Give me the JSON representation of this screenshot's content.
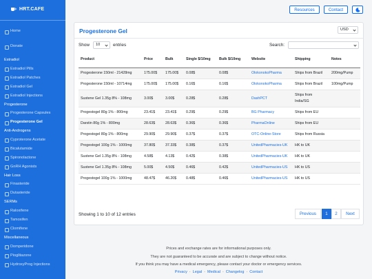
{
  "sidebar": {
    "brand": "HRT.CAFE",
    "links": [
      "Home",
      "Donate"
    ],
    "sections": [
      {
        "title": "Estradiol",
        "items": [
          "Estradiol Pills",
          "Estradiol Patches",
          "Estradiol Gel",
          "Estradiol Injections"
        ]
      },
      {
        "title": "Progesterone",
        "items": [
          "Progesterone Capsules",
          "Progesterone Gel"
        ]
      },
      {
        "title": "Anti-Androgens",
        "items": [
          "Cyproterone Acetate",
          "Bicalutamide",
          "Spironolactone",
          "GnRH Agonists"
        ]
      },
      {
        "title": "Hair Loss",
        "items": [
          "Finasteride",
          "Dutasteride"
        ]
      },
      {
        "title": "SERMs",
        "items": [
          "Raloxifene",
          "Tamoxifen",
          "Clomifene"
        ]
      },
      {
        "title": "Miscellaneous",
        "items": [
          "Domperidone",
          "Pioglitazone",
          "HydroxyProg Injections"
        ]
      }
    ]
  },
  "topbar": {
    "buttons": [
      "Resources",
      "Contact"
    ]
  },
  "card": {
    "title": "Progesterone Gel",
    "currency": "USD",
    "show": "Show",
    "page_length": "10",
    "entries": "entries",
    "search": "Search:",
    "table": {
      "columns": [
        "Product",
        "Price",
        "Bulk",
        "Single $/10mg",
        "Bulk $/10mg",
        "Website",
        "Shipping",
        "Notes"
      ],
      "rows": [
        [
          "Progesterone 150ml - 21428mg",
          "175.00$",
          "175.00$",
          "0.08$",
          "0.08$",
          "OlokonokoPharma",
          "Ships from Brazil",
          "200mg/Pump"
        ],
        [
          "Progesterone 150ml - 10714mg",
          "175.00$",
          "175.00$",
          "0.16$",
          "0.16$",
          "OlokonokoPharma",
          "Ships from Brazil",
          "100mg/Pump"
        ],
        [
          "Sustene Gel 1.35g 8% - 108mg",
          "3.00$",
          "3.00$",
          "0.28$",
          "0.28$",
          "DashPCT",
          "Ships from India/SG",
          ""
        ],
        [
          "Progestogel 80g 1% - 800mg",
          "23.41$",
          "23.41$",
          "0.29$",
          "0.29$",
          "BG Pharmacy",
          "Ships from EU",
          ""
        ],
        [
          "Darstin 80g 1% - 800mg",
          "28.63$",
          "28.63$",
          "0.36$",
          "0.36$",
          "PharmaOnline",
          "Ships from EU",
          ""
        ],
        [
          "Progestogel 80g 1% - 800mg",
          "29.90$",
          "29.90$",
          "0.37$",
          "0.37$",
          "OTC-Online-Store",
          "Ships from Russia",
          ""
        ],
        [
          "Progestogel 100g 1% - 1000mg",
          "37.80$",
          "37.33$",
          "0.38$",
          "0.37$",
          "UnitedPharmacies-UK",
          "HK to UK",
          ""
        ],
        [
          "Sustene Gel 1.35g 8% - 108mg",
          "4.58$",
          "4.13$",
          "0.42$",
          "0.38$",
          "UnitedPharmacies-UK",
          "HK to UK",
          ""
        ],
        [
          "Sustene Gel 1.35g 8% - 108mg",
          "5.00$",
          "4.50$",
          "0.46$",
          "0.42$",
          "UnitedPharmacies-US",
          "HK to US",
          ""
        ],
        [
          "Progestogel 100g 1% - 1000mg",
          "48.47$",
          "46.20$",
          "0.48$",
          "0.46$",
          "UnitedPharmacies-US",
          "HK to US",
          ""
        ]
      ]
    },
    "info": "Showing 1 to 10 of 12 entries",
    "pagination": [
      "Previous",
      "1",
      "2",
      "Next"
    ]
  },
  "footer": {
    "lines": [
      "Prices and exchange rates are for informational purposes only.",
      "They are not guaranteed to be accurate and are subject to change without notice.",
      "If you think you may have a medical emergency, please contact your doctor or emergency services."
    ],
    "links": [
      "Privacy",
      "Legal",
      "Medical",
      "Changelog",
      "Contact"
    ]
  }
}
